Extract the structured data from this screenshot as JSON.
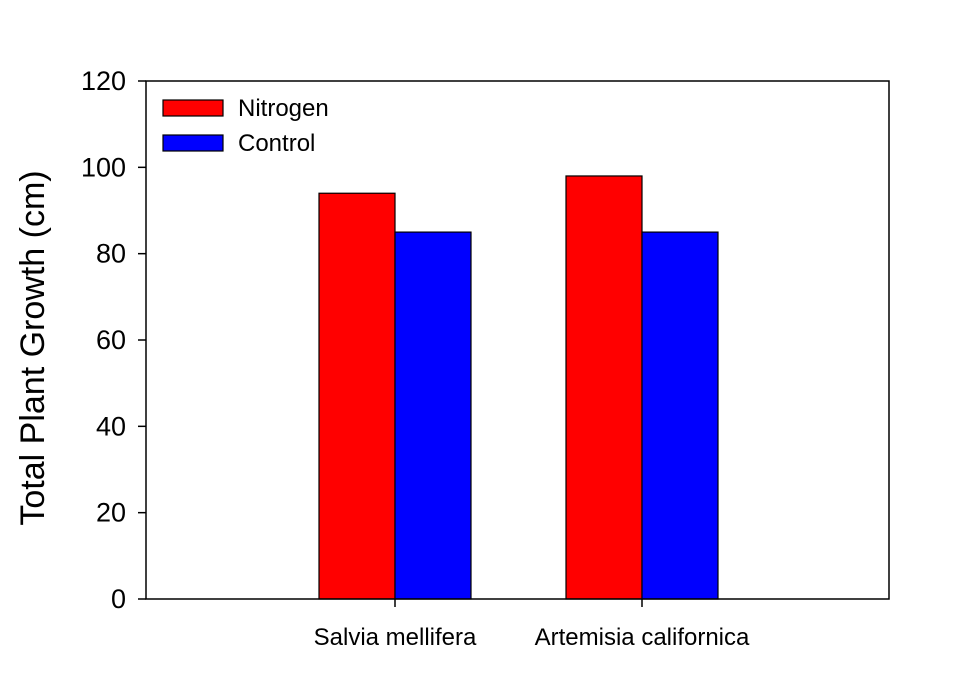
{
  "chart_data": {
    "type": "bar",
    "title": "",
    "xlabel": "",
    "ylabel": "Total Plant Growth (cm)",
    "categories": [
      "Salvia mellifera",
      "Artemisia californica"
    ],
    "series": [
      {
        "name": "Nitrogen",
        "values": [
          94,
          98
        ],
        "color": "#ff0000"
      },
      {
        "name": "Control",
        "values": [
          85,
          85
        ],
        "color": "#0000ff"
      }
    ],
    "ylim": [
      0,
      120
    ],
    "yticks": [
      0,
      20,
      40,
      60,
      80,
      100,
      120
    ],
    "grid": false,
    "legend_position": "top-left"
  }
}
